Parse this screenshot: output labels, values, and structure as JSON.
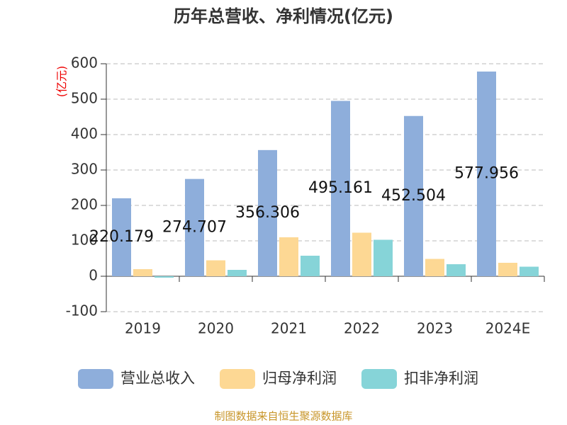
{
  "chart_data": {
    "type": "bar",
    "title": "历年总营收、净利情况(亿元)",
    "y_label": "(亿元)",
    "source": "制图数据来自恒生聚源数据库",
    "categories": [
      "2019",
      "2020",
      "2021",
      "2022",
      "2023",
      "2024E"
    ],
    "series": [
      {
        "name": "营业总收入",
        "color": "#8eaedb",
        "values": [
          220.179,
          274.707,
          356.306,
          495.161,
          452.504,
          577.956
        ],
        "labels": true
      },
      {
        "name": "归母净利润",
        "color": "#fdd894",
        "values": [
          20,
          45,
          110,
          123,
          49,
          38
        ]
      },
      {
        "name": "扣非净利润",
        "color": "#86d4d8",
        "values": [
          -4,
          18,
          58,
          103,
          34,
          27
        ]
      }
    ],
    "ylim": [
      -100,
      600
    ],
    "yticks": [
      -100,
      0,
      100,
      200,
      300,
      400,
      500,
      600
    ],
    "grid": true
  }
}
